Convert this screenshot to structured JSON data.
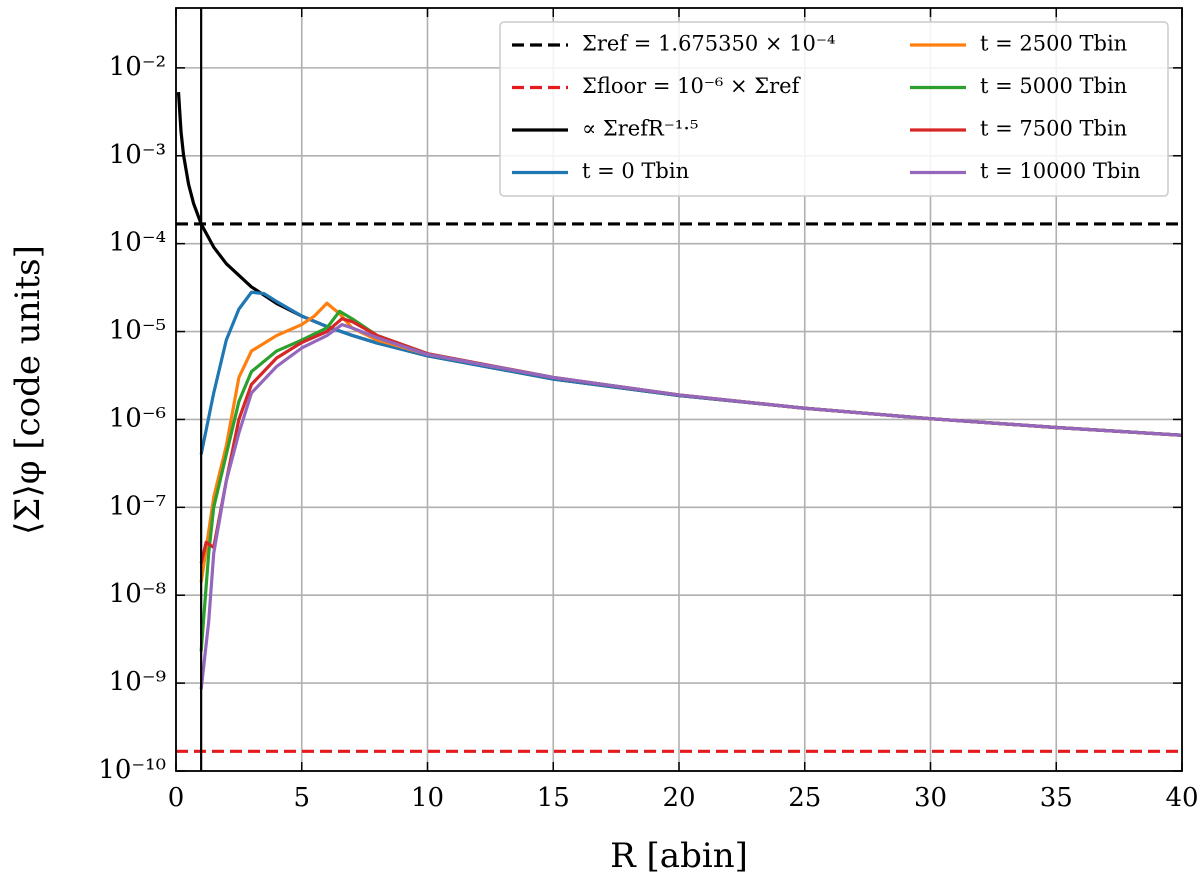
{
  "chart_data": {
    "type": "line",
    "xlabel": "R [abin]",
    "ylabel": "⟨Σ⟩φ [code units]",
    "xlim": [
      0,
      40
    ],
    "ylim": [
      1e-10,
      0.048
    ],
    "yscale": "log",
    "grid": true,
    "legend": "upper right",
    "xticks": [
      0,
      5,
      10,
      15,
      20,
      25,
      30,
      35,
      40
    ],
    "yticks": [
      {
        "value": 1e-10,
        "label": "10⁻¹⁰"
      },
      {
        "value": 1e-09,
        "label": "10⁻⁹"
      },
      {
        "value": 1e-08,
        "label": "10⁻⁸"
      },
      {
        "value": 1e-07,
        "label": "10⁻⁷"
      },
      {
        "value": 1e-06,
        "label": "10⁻⁶"
      },
      {
        "value": 1e-05,
        "label": "10⁻⁵"
      },
      {
        "value": 0.0001,
        "label": "10⁻⁴"
      },
      {
        "value": 0.001,
        "label": "10⁻³"
      },
      {
        "value": 0.01,
        "label": "10⁻²"
      }
    ],
    "vlines": [
      1
    ],
    "series": [
      {
        "name": "Σref = 1.675350 × 10⁻⁴",
        "color": "#000000",
        "style": "dashed",
        "x": [
          0,
          40
        ],
        "values": [
          0.000167535,
          0.000167535
        ]
      },
      {
        "name": "Σfloor = 10⁻⁶ × Σref",
        "color": "#e41a1c",
        "style": "dashed",
        "x": [
          0,
          40
        ],
        "values": [
          1.67535e-10,
          1.67535e-10
        ]
      },
      {
        "name": "∝ ΣrefR⁻¹·⁵",
        "color": "#000000",
        "style": "solid",
        "x": [
          0.1,
          0.2,
          0.3,
          0.5,
          0.7,
          1,
          1.5,
          2,
          3,
          4,
          5,
          6,
          7,
          8,
          10,
          15,
          20,
          25,
          30,
          35,
          40
        ],
        "values": [
          0.0053,
          0.001873,
          0.001019,
          0.000474,
          0.000286,
          0.0001675,
          9.12e-05,
          5.92e-05,
          3.22e-05,
          2.09e-05,
          1.5e-05,
          1.14e-05,
          9.04e-06,
          7.4e-06,
          5.3e-06,
          2.88e-06,
          1.873e-06,
          1.34e-06,
          1.02e-06,
          8.09e-07,
          6.62e-07
        ]
      },
      {
        "name": "t = 0 Tbin",
        "color": "#1f77b4",
        "style": "solid",
        "x": [
          1,
          1.5,
          2,
          2.5,
          3,
          3.5,
          4,
          5,
          6,
          7,
          8,
          10,
          15,
          20,
          25,
          30,
          35,
          40
        ],
        "values": [
          4e-07,
          2e-06,
          8e-06,
          1.8e-05,
          2.8e-05,
          2.7e-05,
          2.2e-05,
          1.5e-05,
          1.14e-05,
          9.04e-06,
          7.4e-06,
          5.3e-06,
          2.88e-06,
          1.873e-06,
          1.34e-06,
          1.02e-06,
          8.09e-07,
          6.62e-07
        ]
      },
      {
        "name": "t = 2500 Tbin",
        "color": "#ff7f0e",
        "style": "solid",
        "x": [
          1,
          1.5,
          2,
          2.5,
          3,
          4,
          5,
          5.5,
          6,
          6.5,
          7,
          8,
          10,
          15,
          20,
          25,
          30,
          35,
          40
        ],
        "values": [
          1.4e-08,
          1.3e-07,
          5e-07,
          3e-06,
          6e-06,
          9e-06,
          1.2e-05,
          1.5e-05,
          2.1e-05,
          1.6e-05,
          1.1e-05,
          8e-06,
          5.5e-06,
          3e-06,
          1.9e-06,
          1.34e-06,
          1.02e-06,
          8.1e-07,
          6.6e-07
        ]
      },
      {
        "name": "t = 5000 Tbin",
        "color": "#2ca02c",
        "style": "solid",
        "x": [
          1,
          1.3,
          1.5,
          2,
          2.5,
          3,
          4,
          5,
          6,
          6.5,
          7,
          8,
          10,
          15,
          20,
          25,
          30,
          35,
          40
        ],
        "values": [
          2.3e-09,
          3e-08,
          1e-07,
          4e-07,
          1.6e-06,
          3.5e-06,
          6e-06,
          8e-06,
          1.1e-05,
          1.7e-05,
          1.4e-05,
          9e-06,
          5.6e-06,
          3e-06,
          1.9e-06,
          1.34e-06,
          1.02e-06,
          8.1e-07,
          6.6e-07
        ]
      },
      {
        "name": "t = 7500 Tbin",
        "color": "#d62728",
        "style": "solid",
        "x": [
          1,
          1.2,
          1.5,
          2,
          2.5,
          3,
          4,
          5,
          6,
          6.6,
          7,
          8,
          10,
          15,
          20,
          25,
          30,
          35,
          40
        ],
        "values": [
          2.3e-08,
          4e-08,
          3.5e-08,
          2e-07,
          1e-06,
          2.5e-06,
          5e-06,
          7.5e-06,
          1e-05,
          1.4e-05,
          1.3e-05,
          9e-06,
          5.6e-06,
          3e-06,
          1.9e-06,
          1.34e-06,
          1.02e-06,
          8.1e-07,
          6.6e-07
        ]
      },
      {
        "name": "t = 10000 Tbin",
        "color": "#9467bd",
        "style": "solid",
        "x": [
          1,
          1.3,
          1.5,
          2,
          2.5,
          3,
          4,
          5,
          6,
          6.6,
          7,
          8,
          10,
          15,
          20,
          25,
          30,
          35,
          40
        ],
        "values": [
          8.5e-10,
          5e-09,
          3e-08,
          2e-07,
          7e-07,
          2e-06,
          4e-06,
          6.5e-06,
          9e-06,
          1.2e-05,
          1.1e-05,
          8.5e-06,
          5.5e-06,
          3e-06,
          1.9e-06,
          1.34e-06,
          1.02e-06,
          8.1e-07,
          6.6e-07
        ]
      }
    ]
  }
}
